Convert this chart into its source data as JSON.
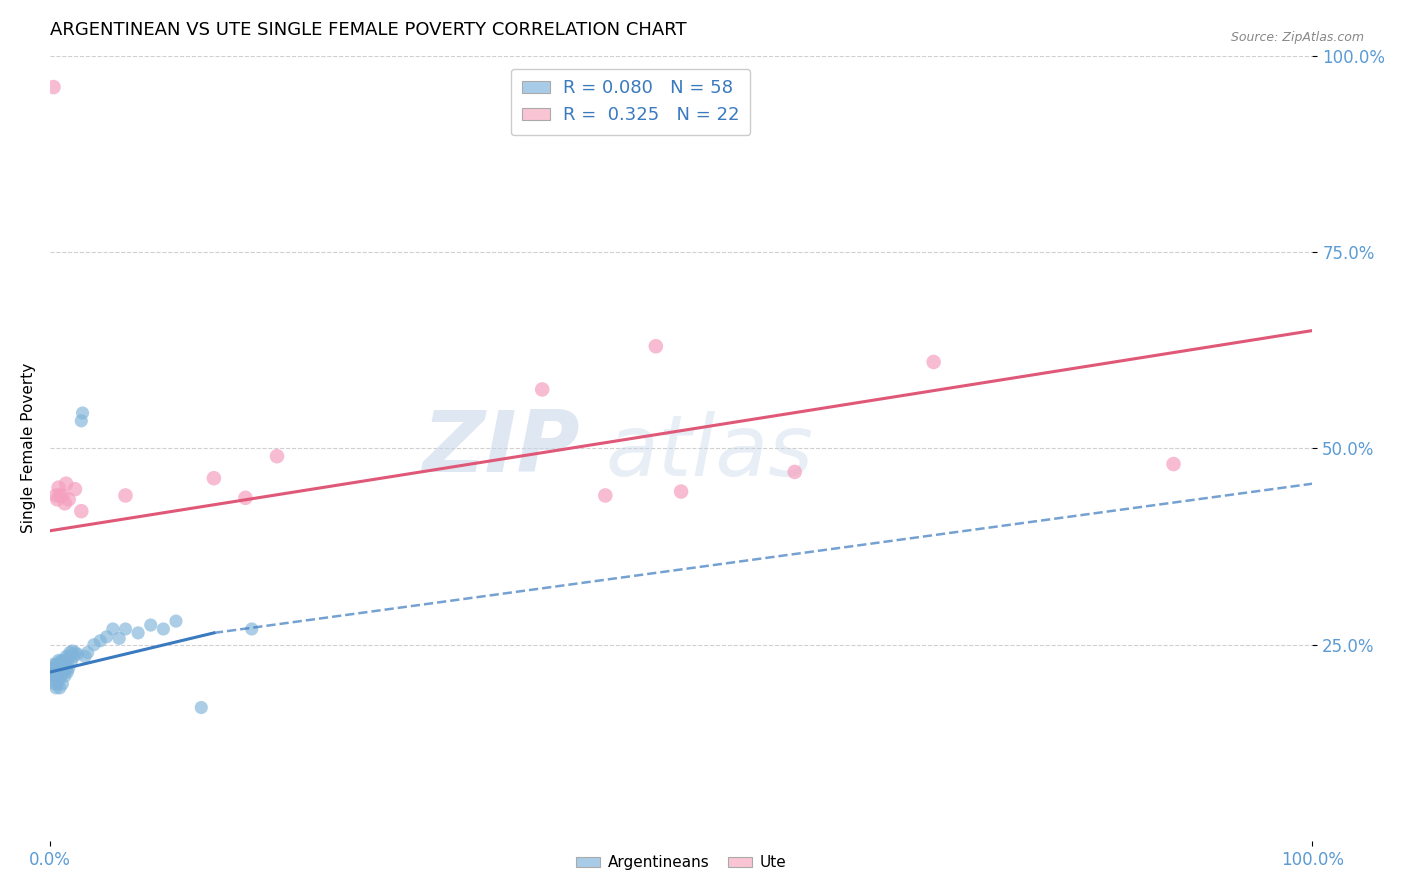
{
  "title": "ARGENTINEAN VS UTE SINGLE FEMALE POVERTY CORRELATION CHART",
  "source": "Source: ZipAtlas.com",
  "ylabel": "Single Female Poverty",
  "xlim": [
    0.0,
    1.0
  ],
  "ylim": [
    0.0,
    1.0
  ],
  "ytick_labels": [
    "25.0%",
    "50.0%",
    "75.0%",
    "100.0%"
  ],
  "ytick_positions": [
    0.25,
    0.5,
    0.75,
    1.0
  ],
  "xtick_labels": [
    "0.0%",
    "100.0%"
  ],
  "xtick_positions": [
    0.0,
    1.0
  ],
  "legend_items_label1": "R = 0.080   N = 58",
  "legend_items_label2": "R =  0.325   N = 22",
  "legend_bottom": [
    "Argentineans",
    "Ute"
  ],
  "watermark_zip": "ZIP",
  "watermark_atlas": "atlas",
  "blue_scatter": [
    [
      0.002,
      0.22
    ],
    [
      0.002,
      0.215
    ],
    [
      0.003,
      0.225
    ],
    [
      0.003,
      0.21
    ],
    [
      0.003,
      0.205
    ],
    [
      0.004,
      0.22
    ],
    [
      0.004,
      0.215
    ],
    [
      0.004,
      0.2
    ],
    [
      0.005,
      0.225
    ],
    [
      0.005,
      0.218
    ],
    [
      0.005,
      0.21
    ],
    [
      0.005,
      0.195
    ],
    [
      0.006,
      0.222
    ],
    [
      0.006,
      0.215
    ],
    [
      0.006,
      0.2
    ],
    [
      0.007,
      0.23
    ],
    [
      0.007,
      0.218
    ],
    [
      0.007,
      0.205
    ],
    [
      0.008,
      0.228
    ],
    [
      0.008,
      0.215
    ],
    [
      0.008,
      0.195
    ],
    [
      0.009,
      0.225
    ],
    [
      0.009,
      0.21
    ],
    [
      0.01,
      0.23
    ],
    [
      0.01,
      0.22
    ],
    [
      0.01,
      0.2
    ],
    [
      0.011,
      0.225
    ],
    [
      0.011,
      0.215
    ],
    [
      0.012,
      0.228
    ],
    [
      0.012,
      0.21
    ],
    [
      0.013,
      0.235
    ],
    [
      0.013,
      0.218
    ],
    [
      0.014,
      0.23
    ],
    [
      0.014,
      0.215
    ],
    [
      0.015,
      0.235
    ],
    [
      0.015,
      0.22
    ],
    [
      0.016,
      0.24
    ],
    [
      0.017,
      0.228
    ],
    [
      0.018,
      0.242
    ],
    [
      0.019,
      0.235
    ],
    [
      0.02,
      0.24
    ],
    [
      0.022,
      0.238
    ],
    [
      0.025,
      0.535
    ],
    [
      0.026,
      0.545
    ],
    [
      0.028,
      0.235
    ],
    [
      0.03,
      0.24
    ],
    [
      0.035,
      0.25
    ],
    [
      0.04,
      0.255
    ],
    [
      0.045,
      0.26
    ],
    [
      0.05,
      0.27
    ],
    [
      0.055,
      0.258
    ],
    [
      0.06,
      0.27
    ],
    [
      0.07,
      0.265
    ],
    [
      0.08,
      0.275
    ],
    [
      0.09,
      0.27
    ],
    [
      0.1,
      0.28
    ],
    [
      0.12,
      0.17
    ],
    [
      0.16,
      0.27
    ]
  ],
  "pink_scatter": [
    [
      0.003,
      0.96
    ],
    [
      0.005,
      0.44
    ],
    [
      0.006,
      0.435
    ],
    [
      0.007,
      0.45
    ],
    [
      0.008,
      0.44
    ],
    [
      0.01,
      0.44
    ],
    [
      0.012,
      0.43
    ],
    [
      0.013,
      0.455
    ],
    [
      0.015,
      0.435
    ],
    [
      0.02,
      0.448
    ],
    [
      0.025,
      0.42
    ],
    [
      0.06,
      0.44
    ],
    [
      0.13,
      0.462
    ],
    [
      0.155,
      0.437
    ],
    [
      0.18,
      0.49
    ],
    [
      0.39,
      0.575
    ],
    [
      0.44,
      0.44
    ],
    [
      0.48,
      0.63
    ],
    [
      0.5,
      0.445
    ],
    [
      0.59,
      0.47
    ],
    [
      0.7,
      0.61
    ],
    [
      0.89,
      0.48
    ]
  ],
  "blue_solid_line": [
    [
      0.0,
      0.215
    ],
    [
      0.13,
      0.265
    ]
  ],
  "blue_dashed_line": [
    [
      0.13,
      0.265
    ],
    [
      1.0,
      0.455
    ]
  ],
  "pink_solid_line": [
    [
      0.0,
      0.395
    ],
    [
      1.0,
      0.65
    ]
  ],
  "blue_scatter_color": "#7fb3d9",
  "pink_scatter_color": "#f4a0be",
  "blue_legend_color": "#a8cce8",
  "pink_legend_color": "#f9c4d4",
  "blue_line_color": "#3a7abf",
  "pink_line_color": "#e05878",
  "tick_label_color": "#5b9bd5",
  "grid_color": "#d0d0d0",
  "title_fontsize": 13,
  "source_fontsize": 9
}
